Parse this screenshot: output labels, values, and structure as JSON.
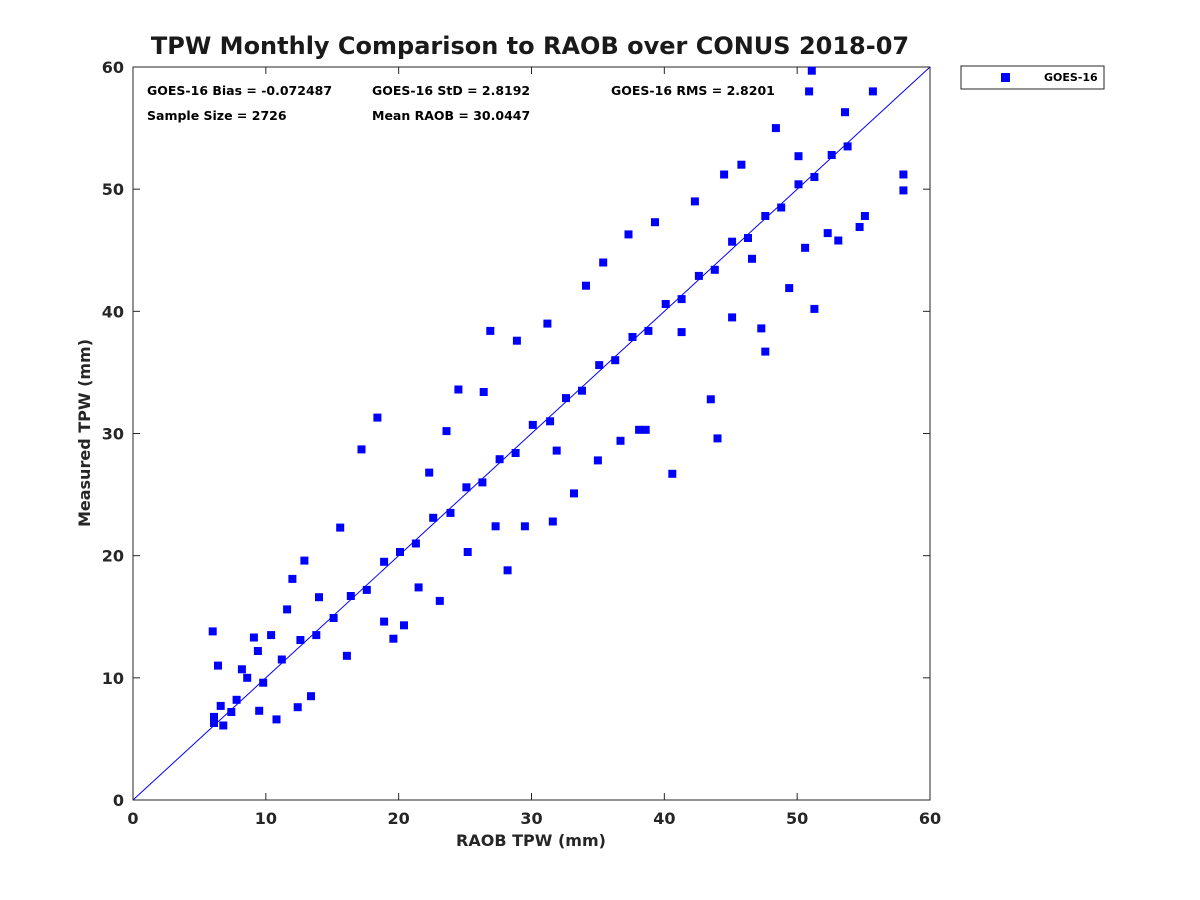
{
  "chart_data": {
    "type": "scatter",
    "title": "TPW Monthly Comparison to RAOB over CONUS 2018-07",
    "xlabel": "RAOB TPW (mm)",
    "ylabel": "Measured TPW (mm)",
    "xlim": [
      0,
      60
    ],
    "ylim": [
      0,
      60
    ],
    "xticks": [
      "0",
      "10",
      "20",
      "30",
      "40",
      "50",
      "60"
    ],
    "yticks": [
      "0",
      "10",
      "20",
      "30",
      "40",
      "50",
      "60"
    ],
    "grid": false,
    "legend_position": "outside-top-right",
    "reference_line": {
      "name": "1:1 line",
      "x": [
        0,
        60
      ],
      "y": [
        0,
        60
      ]
    },
    "stats": {
      "bias": "GOES-16 Bias = -0.072487",
      "std": "GOES-16 StD = 2.8192",
      "rms": "GOES-16 RMS = 2.8201",
      "sample_size": "Sample Size = 2726",
      "mean_raob": "Mean RAOB = 30.0447"
    },
    "series": [
      {
        "name": "GOES-16",
        "marker": "square",
        "color": "#0000ff",
        "points": [
          [
            6.0,
            13.8
          ],
          [
            6.1,
            6.8
          ],
          [
            6.1,
            6.3
          ],
          [
            6.4,
            11.0
          ],
          [
            6.6,
            7.7
          ],
          [
            6.8,
            6.1
          ],
          [
            7.4,
            7.2
          ],
          [
            7.8,
            8.2
          ],
          [
            8.2,
            10.7
          ],
          [
            8.6,
            10.0
          ],
          [
            9.1,
            13.3
          ],
          [
            9.4,
            12.2
          ],
          [
            9.5,
            7.3
          ],
          [
            10.4,
            13.5
          ],
          [
            10.8,
            6.6
          ],
          [
            11.6,
            15.6
          ],
          [
            12.0,
            18.1
          ],
          [
            12.4,
            7.6
          ],
          [
            12.9,
            19.6
          ],
          [
            13.4,
            8.5
          ],
          [
            14.0,
            16.6
          ],
          [
            15.6,
            22.3
          ],
          [
            16.1,
            11.8
          ],
          [
            17.2,
            28.7
          ],
          [
            18.4,
            31.3
          ],
          [
            18.9,
            14.6
          ],
          [
            19.6,
            13.2
          ],
          [
            20.4,
            14.3
          ],
          [
            21.5,
            17.4
          ],
          [
            22.3,
            26.8
          ],
          [
            23.1,
            16.3
          ],
          [
            23.6,
            30.2
          ],
          [
            24.5,
            33.6
          ],
          [
            25.2,
            20.3
          ],
          [
            26.4,
            33.4
          ],
          [
            26.9,
            38.4
          ],
          [
            27.3,
            22.4
          ],
          [
            28.2,
            18.8
          ],
          [
            28.9,
            37.6
          ],
          [
            29.5,
            22.4
          ],
          [
            31.2,
            39.0
          ],
          [
            31.6,
            22.8
          ],
          [
            31.9,
            28.6
          ],
          [
            33.2,
            25.1
          ],
          [
            34.1,
            42.1
          ],
          [
            35.0,
            27.8
          ],
          [
            35.4,
            44.0
          ],
          [
            36.7,
            29.4
          ],
          [
            37.3,
            46.3
          ],
          [
            38.1,
            30.3
          ],
          [
            38.6,
            30.3
          ],
          [
            39.3,
            47.3
          ],
          [
            40.6,
            26.7
          ],
          [
            41.3,
            38.3
          ],
          [
            42.3,
            49.0
          ],
          [
            43.5,
            32.8
          ],
          [
            44.0,
            29.6
          ],
          [
            44.5,
            51.2
          ],
          [
            45.1,
            39.5
          ],
          [
            45.8,
            52.0
          ],
          [
            46.6,
            44.3
          ],
          [
            47.3,
            38.6
          ],
          [
            47.6,
            36.7
          ],
          [
            48.4,
            55.0
          ],
          [
            49.4,
            41.9
          ],
          [
            50.1,
            52.7
          ],
          [
            50.6,
            45.2
          ],
          [
            50.9,
            58.0
          ],
          [
            51.1,
            59.7
          ],
          [
            51.3,
            40.2
          ],
          [
            52.3,
            46.4
          ],
          [
            53.1,
            45.8
          ],
          [
            53.6,
            56.3
          ],
          [
            54.7,
            46.9
          ],
          [
            55.1,
            47.8
          ],
          [
            55.7,
            58.0
          ],
          [
            58.0,
            51.2
          ],
          [
            58.0,
            49.9
          ],
          [
            9.8,
            9.6
          ],
          [
            11.2,
            11.5
          ],
          [
            12.6,
            13.1
          ],
          [
            13.8,
            13.5
          ],
          [
            15.1,
            14.9
          ],
          [
            16.4,
            16.7
          ],
          [
            17.6,
            17.2
          ],
          [
            18.9,
            19.5
          ],
          [
            20.1,
            20.3
          ],
          [
            21.3,
            21.0
          ],
          [
            22.6,
            23.1
          ],
          [
            23.9,
            23.5
          ],
          [
            25.1,
            25.6
          ],
          [
            26.3,
            26.0
          ],
          [
            27.6,
            27.9
          ],
          [
            28.8,
            28.4
          ],
          [
            30.1,
            30.7
          ],
          [
            31.4,
            31.0
          ],
          [
            32.6,
            32.9
          ],
          [
            33.8,
            33.5
          ],
          [
            35.1,
            35.6
          ],
          [
            36.3,
            36.0
          ],
          [
            37.6,
            37.9
          ],
          [
            38.8,
            38.4
          ],
          [
            40.1,
            40.6
          ],
          [
            41.3,
            41.0
          ],
          [
            42.6,
            42.9
          ],
          [
            43.8,
            43.4
          ],
          [
            45.1,
            45.7
          ],
          [
            46.3,
            46.0
          ],
          [
            47.6,
            47.8
          ],
          [
            48.8,
            48.5
          ],
          [
            50.1,
            50.4
          ],
          [
            51.3,
            51.0
          ],
          [
            52.6,
            52.8
          ],
          [
            53.8,
            53.5
          ]
        ]
      }
    ]
  }
}
